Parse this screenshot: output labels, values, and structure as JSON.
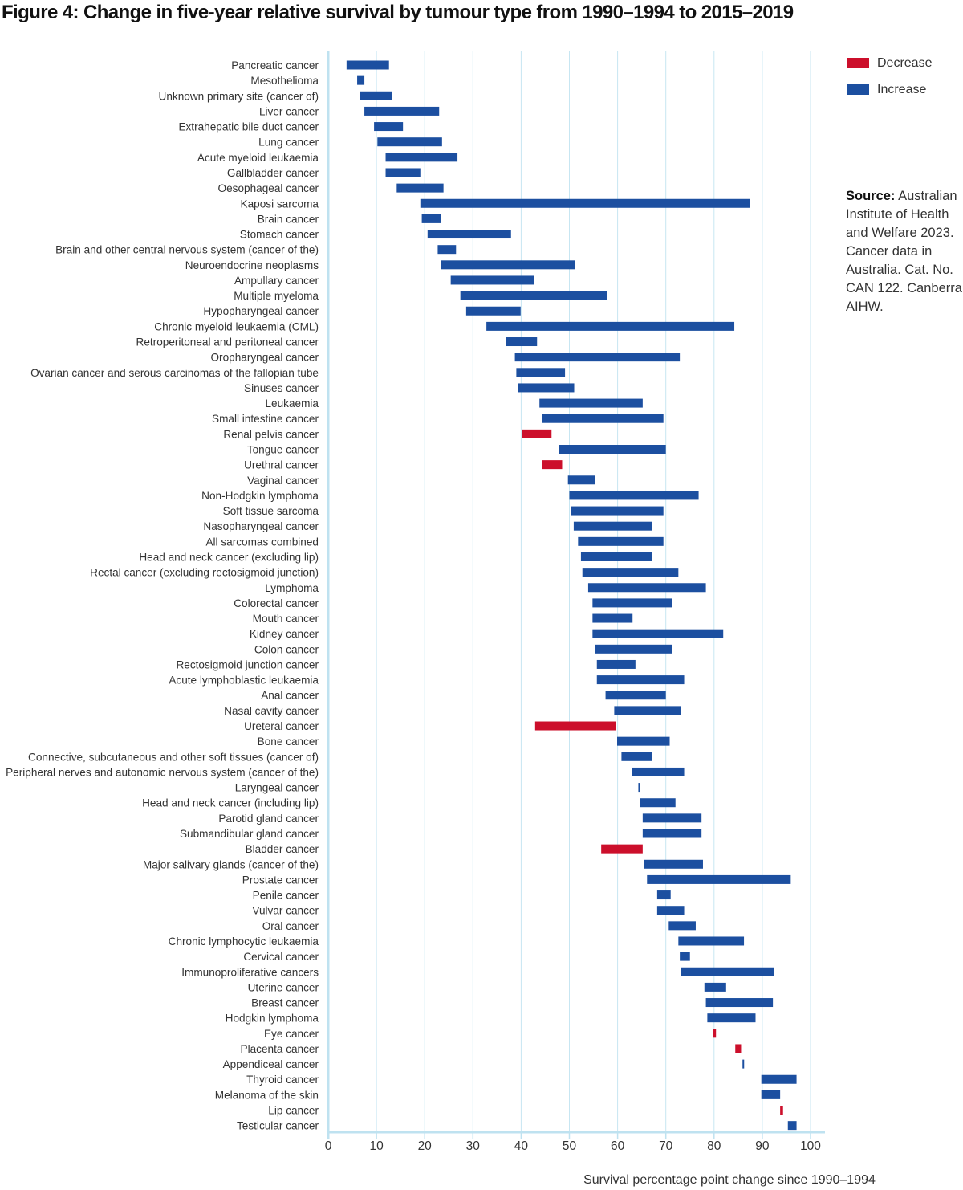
{
  "figure_title": "Figure 4: Change in five-year relative survival by tumour type from 1990–1994 to 2015–2019",
  "source": {
    "label": "Source:",
    "text": "Australian Institute of Health and Welfare 2023. Cancer data in Australia. Cat. No. CAN 122. Canberra: AIHW."
  },
  "colors": {
    "increase": "#1c4fa0",
    "decrease": "#cc0f2b",
    "grid": "#c7e6f2",
    "axis": "#bfe2f0"
  },
  "chart_data": {
    "type": "bar",
    "subtype": "floating-range",
    "xlabel": "Survival percentage point change since 1990–1994",
    "xlim": [
      0,
      100
    ],
    "xticks": [
      0,
      10,
      20,
      30,
      40,
      50,
      60,
      70,
      80,
      90,
      100
    ],
    "grid": true,
    "legend": [
      {
        "name": "Decrease",
        "color": "#cc0f2b"
      },
      {
        "name": "Increase",
        "color": "#1c4fa0"
      }
    ],
    "legend_position": "top-right",
    "series": [
      {
        "category": "Pancreatic cancer",
        "start": 3.8,
        "end": 12.6,
        "direction": "Increase"
      },
      {
        "category": "Mesothelioma",
        "start": 6.0,
        "end": 7.5,
        "direction": "Increase"
      },
      {
        "category": "Unknown primary site (cancer of)",
        "start": 6.5,
        "end": 13.3,
        "direction": "Increase"
      },
      {
        "category": "Liver cancer",
        "start": 7.5,
        "end": 23.0,
        "direction": "Increase"
      },
      {
        "category": "Extrahepatic bile duct cancer",
        "start": 9.5,
        "end": 15.5,
        "direction": "Increase"
      },
      {
        "category": "Lung cancer",
        "start": 10.2,
        "end": 23.6,
        "direction": "Increase"
      },
      {
        "category": "Acute myeloid leukaemia",
        "start": 11.9,
        "end": 26.8,
        "direction": "Increase"
      },
      {
        "category": "Gallbladder cancer",
        "start": 11.9,
        "end": 19.1,
        "direction": "Increase"
      },
      {
        "category": "Oesophageal cancer",
        "start": 14.2,
        "end": 23.9,
        "direction": "Increase"
      },
      {
        "category": "Kaposi sarcoma",
        "start": 19.1,
        "end": 87.4,
        "direction": "Increase"
      },
      {
        "category": "Brain cancer",
        "start": 19.4,
        "end": 23.3,
        "direction": "Increase"
      },
      {
        "category": "Stomach cancer",
        "start": 20.6,
        "end": 37.9,
        "direction": "Increase"
      },
      {
        "category": "Brain and other central nervous system (cancer of the)",
        "start": 22.7,
        "end": 26.5,
        "direction": "Increase"
      },
      {
        "category": "Neuroendocrine neoplasms",
        "start": 23.3,
        "end": 51.2,
        "direction": "Increase"
      },
      {
        "category": "Ampullary cancer",
        "start": 25.4,
        "end": 42.6,
        "direction": "Increase"
      },
      {
        "category": "Multiple myeloma",
        "start": 27.4,
        "end": 57.8,
        "direction": "Increase"
      },
      {
        "category": "Hypopharyngeal cancer",
        "start": 28.6,
        "end": 39.9,
        "direction": "Increase"
      },
      {
        "category": "Chronic myeloid leukaemia (CML)",
        "start": 32.8,
        "end": 84.2,
        "direction": "Increase"
      },
      {
        "category": "Retroperitoneal and peritoneal cancer",
        "start": 36.9,
        "end": 43.3,
        "direction": "Increase"
      },
      {
        "category": "Oropharyngeal cancer",
        "start": 38.7,
        "end": 72.9,
        "direction": "Increase"
      },
      {
        "category": "Ovarian cancer and serous carcinomas of the fallopian tube",
        "start": 39.0,
        "end": 49.1,
        "direction": "Increase"
      },
      {
        "category": "Sinuses cancer",
        "start": 39.3,
        "end": 51.0,
        "direction": "Increase"
      },
      {
        "category": "Leukaemia",
        "start": 43.8,
        "end": 65.2,
        "direction": "Increase"
      },
      {
        "category": "Small intestine cancer",
        "start": 44.4,
        "end": 69.5,
        "direction": "Increase"
      },
      {
        "category": "Renal pelvis cancer",
        "start": 40.2,
        "end": 46.3,
        "direction": "Decrease"
      },
      {
        "category": "Tongue cancer",
        "start": 47.9,
        "end": 70.0,
        "direction": "Increase"
      },
      {
        "category": "Urethral cancer",
        "start": 44.4,
        "end": 48.5,
        "direction": "Decrease"
      },
      {
        "category": "Vaginal cancer",
        "start": 49.7,
        "end": 55.4,
        "direction": "Increase"
      },
      {
        "category": "Non-Hodgkin lymphoma",
        "start": 50.0,
        "end": 76.8,
        "direction": "Increase"
      },
      {
        "category": "Soft tissue sarcoma",
        "start": 50.3,
        "end": 69.5,
        "direction": "Increase"
      },
      {
        "category": "Nasopharyngeal cancer",
        "start": 50.9,
        "end": 67.1,
        "direction": "Increase"
      },
      {
        "category": "All sarcomas combined",
        "start": 51.8,
        "end": 69.5,
        "direction": "Increase"
      },
      {
        "category": "Head and neck cancer (excluding lip)",
        "start": 52.4,
        "end": 67.1,
        "direction": "Increase"
      },
      {
        "category": "Rectal cancer (excluding rectosigmoid junction)",
        "start": 52.7,
        "end": 72.6,
        "direction": "Increase"
      },
      {
        "category": "Lymphoma",
        "start": 53.9,
        "end": 78.3,
        "direction": "Increase"
      },
      {
        "category": "Colorectal cancer",
        "start": 54.8,
        "end": 71.3,
        "direction": "Increase"
      },
      {
        "category": "Mouth cancer",
        "start": 54.8,
        "end": 63.1,
        "direction": "Increase"
      },
      {
        "category": "Kidney cancer",
        "start": 54.8,
        "end": 81.9,
        "direction": "Increase"
      },
      {
        "category": "Colon cancer",
        "start": 55.4,
        "end": 71.3,
        "direction": "Increase"
      },
      {
        "category": "Rectosigmoid junction cancer",
        "start": 55.7,
        "end": 63.7,
        "direction": "Increase"
      },
      {
        "category": "Acute lymphoblastic leukaemia",
        "start": 55.7,
        "end": 73.8,
        "direction": "Increase"
      },
      {
        "category": "Anal cancer",
        "start": 57.5,
        "end": 70.0,
        "direction": "Increase"
      },
      {
        "category": "Nasal cavity cancer",
        "start": 59.3,
        "end": 73.2,
        "direction": "Increase"
      },
      {
        "category": "Ureteral cancer",
        "start": 42.9,
        "end": 59.6,
        "direction": "Decrease"
      },
      {
        "category": "Bone cancer",
        "start": 59.9,
        "end": 70.8,
        "direction": "Increase"
      },
      {
        "category": "Connective, subcutaneous and other soft tissues (cancer of)",
        "start": 60.8,
        "end": 67.1,
        "direction": "Increase"
      },
      {
        "category": "Peripheral nerves and autonomic nervous system (cancer of the)",
        "start": 62.9,
        "end": 73.8,
        "direction": "Increase"
      },
      {
        "category": "Laryngeal cancer",
        "start": 64.3,
        "end": 64.6,
        "direction": "Increase"
      },
      {
        "category": "Head and neck cancer (including lip)",
        "start": 64.6,
        "end": 72.0,
        "direction": "Increase"
      },
      {
        "category": "Parotid gland cancer",
        "start": 65.2,
        "end": 77.4,
        "direction": "Increase"
      },
      {
        "category": "Submandibular gland cancer",
        "start": 65.2,
        "end": 77.4,
        "direction": "Increase"
      },
      {
        "category": "Bladder cancer",
        "start": 56.6,
        "end": 65.2,
        "direction": "Decrease"
      },
      {
        "category": "Major salivary glands (cancer of the)",
        "start": 65.5,
        "end": 77.7,
        "direction": "Increase"
      },
      {
        "category": "Prostate cancer",
        "start": 66.1,
        "end": 95.9,
        "direction": "Increase"
      },
      {
        "category": "Penile cancer",
        "start": 68.2,
        "end": 71.0,
        "direction": "Increase"
      },
      {
        "category": "Vulvar cancer",
        "start": 68.2,
        "end": 73.8,
        "direction": "Increase"
      },
      {
        "category": "Oral cancer",
        "start": 70.6,
        "end": 76.2,
        "direction": "Increase"
      },
      {
        "category": "Chronic lymphocytic leukaemia",
        "start": 72.6,
        "end": 86.2,
        "direction": "Increase"
      },
      {
        "category": "Cervical cancer",
        "start": 72.9,
        "end": 75.0,
        "direction": "Increase"
      },
      {
        "category": "Immunoproliferative cancers",
        "start": 73.2,
        "end": 92.5,
        "direction": "Increase"
      },
      {
        "category": "Uterine cancer",
        "start": 78.0,
        "end": 82.5,
        "direction": "Increase"
      },
      {
        "category": "Breast cancer",
        "start": 78.3,
        "end": 92.2,
        "direction": "Increase"
      },
      {
        "category": "Hodgkin lymphoma",
        "start": 78.6,
        "end": 88.6,
        "direction": "Increase"
      },
      {
        "category": "Eye cancer",
        "start": 79.8,
        "end": 80.4,
        "direction": "Decrease"
      },
      {
        "category": "Placenta cancer",
        "start": 84.4,
        "end": 85.6,
        "direction": "Decrease"
      },
      {
        "category": "Appendiceal cancer",
        "start": 85.9,
        "end": 86.2,
        "direction": "Increase"
      },
      {
        "category": "Thyroid cancer",
        "start": 89.8,
        "end": 97.1,
        "direction": "Increase"
      },
      {
        "category": "Melanoma of the skin",
        "start": 89.8,
        "end": 93.7,
        "direction": "Increase"
      },
      {
        "category": "Lip cancer",
        "start": 93.7,
        "end": 94.3,
        "direction": "Decrease"
      },
      {
        "category": "Testicular cancer",
        "start": 95.3,
        "end": 97.1,
        "direction": "Increase"
      }
    ]
  }
}
